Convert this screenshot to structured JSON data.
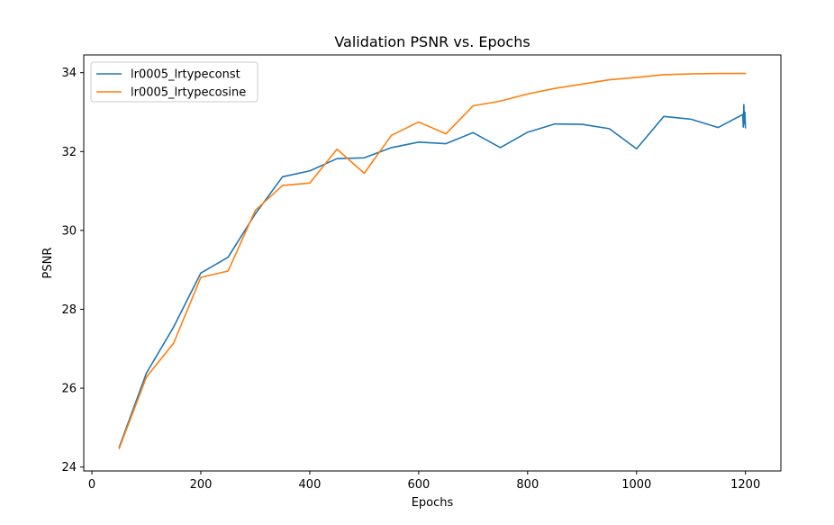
{
  "chart_data": {
    "type": "line",
    "title": "Validation PSNR vs. Epochs",
    "xlabel": "Epochs",
    "ylabel": "PSNR",
    "xlim": [
      -15,
      1265
    ],
    "ylim": [
      23.9,
      34.45
    ],
    "xticks": [
      0,
      200,
      400,
      600,
      800,
      1000,
      1200
    ],
    "yticks": [
      24,
      26,
      28,
      30,
      32,
      34
    ],
    "grid": false,
    "legend_position": "top-left",
    "series": [
      {
        "name": "lr0005_lrtypeconst",
        "color": "#1f77b4",
        "x": [
          50,
          100,
          150,
          200,
          250,
          300,
          350,
          400,
          450,
          500,
          550,
          600,
          650,
          700,
          750,
          800,
          850,
          900,
          950,
          1000,
          1050,
          1100,
          1150,
          1195,
          1196,
          1197,
          1198,
          1199,
          1200
        ],
        "y": [
          24.5,
          26.38,
          27.55,
          28.92,
          29.32,
          30.42,
          31.36,
          31.51,
          31.82,
          31.84,
          32.1,
          32.24,
          32.2,
          32.48,
          32.1,
          32.49,
          32.7,
          32.69,
          32.58,
          32.07,
          32.89,
          32.82,
          32.61,
          32.94,
          32.62,
          33.19,
          32.7,
          33.0,
          32.6
        ]
      },
      {
        "name": "lr0005_lrtypecosine",
        "color": "#ff7f0e",
        "x": [
          50,
          100,
          150,
          200,
          250,
          300,
          350,
          400,
          450,
          500,
          550,
          600,
          650,
          700,
          750,
          800,
          850,
          900,
          950,
          1000,
          1050,
          1100,
          1150,
          1200
        ],
        "y": [
          24.47,
          26.28,
          27.14,
          28.81,
          28.97,
          30.51,
          31.14,
          31.2,
          32.06,
          31.45,
          32.41,
          32.75,
          32.45,
          33.16,
          33.28,
          33.46,
          33.6,
          33.71,
          33.82,
          33.88,
          33.95,
          33.97,
          33.98,
          33.98
        ]
      }
    ]
  }
}
